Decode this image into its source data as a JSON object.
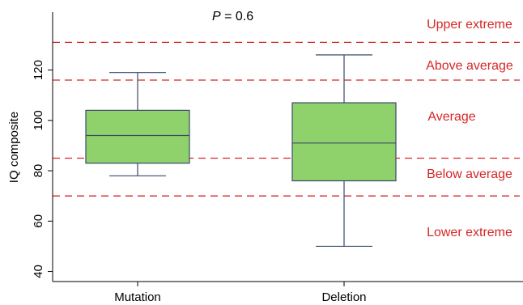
{
  "chart_data": {
    "type": "box",
    "ylabel": "IQ composite",
    "xlabel": "",
    "ylim": [
      36,
      143
    ],
    "yticks": [
      40,
      60,
      80,
      100,
      120
    ],
    "categories": [
      "Mutation",
      "Deletion"
    ],
    "boxes": [
      {
        "category": "Mutation",
        "min": 78,
        "q1": 83,
        "median": 94,
        "q3": 104,
        "max": 119
      },
      {
        "category": "Deletion",
        "min": 50,
        "q1": 76,
        "median": 91,
        "q3": 107,
        "max": 126
      }
    ],
    "reference_lines": [
      {
        "value": 131,
        "label": "Upper extreme"
      },
      {
        "value": 116,
        "label": "Above average"
      },
      {
        "value": 85,
        "label": "Below average"
      },
      {
        "value": 70,
        "label": "Lower extreme"
      }
    ],
    "band_labels": [
      "Average"
    ],
    "annotation": {
      "italic": "P",
      "rest": " = 0.6"
    },
    "colors": {
      "box_fill": "#8fd16a",
      "box_stroke": "#3a4a6b",
      "reference": "#d62728",
      "axis": "#000000"
    },
    "grid": false
  }
}
